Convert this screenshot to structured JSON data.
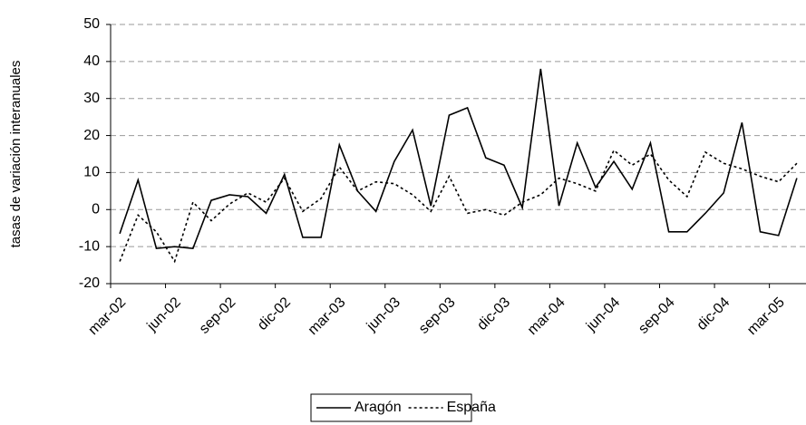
{
  "chart_data": {
    "type": "line",
    "y_label": "tasas de variación interanuales",
    "categories": [
      "mar-02",
      null,
      null,
      "jun-02",
      null,
      null,
      "sep-02",
      null,
      null,
      "dic-02",
      null,
      null,
      "mar-03",
      null,
      null,
      "jun-03",
      null,
      null,
      "sep-03",
      null,
      null,
      "dic-03",
      null,
      null,
      "mar-04",
      null,
      null,
      "jun-04",
      null,
      null,
      "sep-04",
      null,
      null,
      "dic-04",
      null,
      null,
      "mar-05",
      null
    ],
    "series": [
      {
        "name": "Aragón",
        "color": "#000000",
        "dash": false,
        "values": [
          -6.5,
          8,
          -10.5,
          -10,
          -10.5,
          2.5,
          4,
          3.5,
          -1,
          9.5,
          -7.5,
          -7.5,
          17.5,
          5,
          -0.5,
          13,
          21.5,
          1,
          25.5,
          27.5,
          14,
          12,
          0.5,
          38,
          1,
          18,
          6,
          13,
          5.5,
          18,
          -6,
          -6,
          -1,
          4.5,
          23.5,
          -6,
          -7,
          8.5
        ]
      },
      {
        "name": "España",
        "color": "#000000",
        "dash": true,
        "values": [
          -14,
          -1.5,
          -6,
          -14,
          2,
          -3,
          1.5,
          4.5,
          2,
          8.5,
          -0.5,
          3,
          11.5,
          5,
          7.5,
          7,
          4,
          -0.5,
          9,
          -1,
          0,
          -1.5,
          2,
          4,
          8.5,
          7,
          5,
          16,
          12,
          15,
          8,
          3.5,
          15.5,
          12.5,
          11,
          9,
          7.5,
          12.5
        ]
      }
    ],
    "ylim": [
      -20,
      50
    ],
    "yticks": [
      -20,
      -10,
      0,
      10,
      20,
      30,
      40,
      50
    ],
    "grid": true,
    "legend": "bottom"
  }
}
